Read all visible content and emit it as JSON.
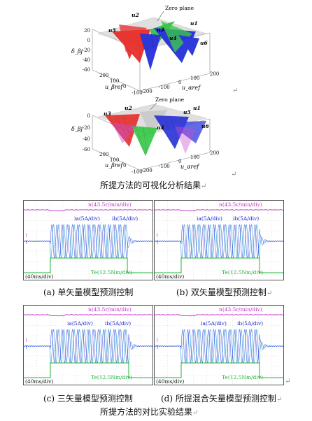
{
  "figure1": {
    "caption": "所提方法的可视化分析结果",
    "top_plot": {
      "zlabel": "δ_βj",
      "zticks": [
        "20",
        "0",
        "-20",
        "-40",
        "-60"
      ],
      "y_axis_label": "u_βref",
      "x_axis_label": "u_αref",
      "yticks": [
        "200",
        "100",
        "0",
        "-100"
      ],
      "xticks": [
        "-200",
        "-100",
        "0",
        "100",
        "200"
      ],
      "annotation": "Zero plane",
      "vectors": [
        "u2",
        "u1",
        "u3",
        "u4",
        "u6",
        "u5"
      ]
    },
    "bottom_plot": {
      "zlabel": "δ_βj",
      "zticks": [
        "0",
        "-20",
        "-40",
        "-60"
      ],
      "y_axis_label": "u_βref",
      "x_axis_label": "u_αref",
      "yticks": [
        "200",
        "100",
        "0",
        "-100"
      ],
      "xticks": [
        "-200",
        "-100",
        "0",
        "100",
        "200"
      ],
      "annotation": "Zero plane",
      "vectors": [
        "u2",
        "u1",
        "u3",
        "u4",
        "u6",
        "u5"
      ]
    }
  },
  "figure2": {
    "caption": "所提方法的对比实验结果",
    "panels": [
      {
        "caption": "(a)  单矢量模型预测控制",
        "speed_label": "n(43.5r/min/div)",
        "current_a_label": "ia(5A/div)",
        "current_b_label": "ib(5A/div)",
        "torque_label": "Te(12.5Nm/div)",
        "time_label": "(40ms/div)"
      },
      {
        "caption": "(b)  双矢量模型预测控制",
        "speed_label": "n(43.5r/min/div)",
        "current_a_label": "ia(5A/div)",
        "current_b_label": "ib(5A/div)",
        "torque_label": "Te(12.5Nm/div)",
        "time_label": "(40ms/div)"
      },
      {
        "caption": "(c)  三矢量模型预测控制",
        "speed_label": "n(43.5r/min/div)",
        "current_a_label": "ia(5A/div)",
        "current_b_label": "ib(5A/div)",
        "torque_label": "Te(12.5Nm/div)",
        "time_label": "(40ms/div)"
      },
      {
        "caption": "(d)  所提混合矢量模型预测控制",
        "speed_label": "n(43.5r/min/div)",
        "current_a_label": "ia(5A/div)",
        "current_b_label": "ib(5A/div)",
        "torque_label": "Te(12.5Nm/div)",
        "time_label": "(40ms/div)"
      }
    ]
  },
  "colors": {
    "red": "#e8231f",
    "green": "#28c43a",
    "blue": "#1a24d6",
    "magenta": "#c02ec8",
    "cyan": "#1a8fd6",
    "torque": "#1fb43a"
  }
}
